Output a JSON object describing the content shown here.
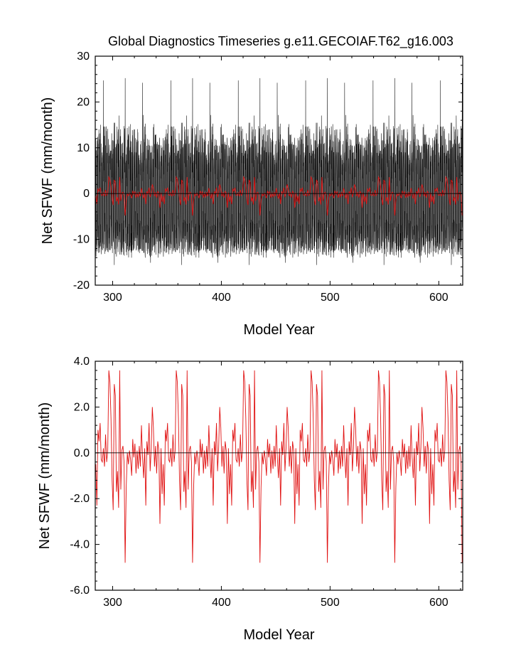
{
  "figure": {
    "title": "Global Diagnostics Timeseries g.e11.GECOIAF.T62_g16.003"
  },
  "chart_data": [
    {
      "type": "line",
      "xlabel": "Model Year",
      "ylabel": "Net SFWF (mm/month)",
      "xlim": [
        284,
        622
      ],
      "ylim": [
        -20,
        30
      ],
      "xticks": [
        300,
        400,
        500,
        600
      ],
      "xtick_labels": [
        "300",
        "400",
        "500",
        "600"
      ],
      "yticks": [
        -20,
        -10,
        0,
        10,
        20,
        30
      ],
      "ytick_labels": [
        "-20",
        "-10",
        "0",
        "10",
        "20",
        "30"
      ],
      "reference_line": 0,
      "series": [
        {
          "color": "#000000",
          "generation": {
            "kind": "monthly",
            "cycle_years": 62,
            "start": 284,
            "end": 622,
            "max": 25.2,
            "min": -15.6,
            "typical_high": 18,
            "typical_low": -9
          }
        },
        {
          "color": "#e01010",
          "generation": {
            "kind": "annual",
            "cycle_years": 62,
            "start": 284,
            "end": 622
          }
        }
      ],
      "grid": false
    },
    {
      "type": "line",
      "xlabel": "Model Year",
      "ylabel": "Net SFWF (mm/month)",
      "xlim": [
        284,
        622
      ],
      "ylim": [
        -6.0,
        4.0
      ],
      "xticks": [
        300,
        400,
        500,
        600
      ],
      "xtick_labels": [
        "300",
        "400",
        "500",
        "600"
      ],
      "yticks": [
        -6.0,
        -4.0,
        -2.0,
        0.0,
        2.0,
        4.0
      ],
      "ytick_labels": [
        "-6.0",
        "-4.0",
        "-2.0",
        "0.0",
        "2.0",
        "4.0"
      ],
      "reference_line": 0.0,
      "series": [
        {
          "color": "#e01010",
          "cycle_years": 62,
          "cycle_start": 284,
          "cycle_values": [
            -0.5,
            -2.3,
            1.0,
            0.5,
            1.3,
            -0.3,
            -0.4,
            0.2,
            -0.6,
            0.8,
            -0.4,
            0.1,
            -3.3,
            3.0,
            1.5,
            -1.2,
            -2.5,
            0.0,
            2.5,
            -1.7,
            -0.8,
            -2.4,
            3.6,
            -1.6,
            0.1,
            0.3,
            -0.4,
            0.2,
            -1.5,
            0.0,
            -0.5,
            0.1,
            -0.3,
            -1.0,
            0.6,
            -0.2,
            0.4,
            -0.9,
            0.1,
            -0.7,
            0.3,
            -0.6,
            1.2,
            -0.2,
            -1.1,
            0.2,
            -2.3,
            0.5,
            -0.1,
            1.3,
            -0.8,
            0.2,
            -0.4,
            1.1,
            -0.6,
            0.3,
            -0.9,
            0.5,
            0.1,
            -0.6,
            0.2,
            -1.8
          ],
          "events": [
            {
              "year": 311,
              "value": -4.8
            },
            {
              "year": 373,
              "value": -4.8
            },
            {
              "year": 435,
              "value": -4.8
            },
            {
              "year": 497,
              "value": -4.8
            },
            {
              "year": 559,
              "value": -4.8
            },
            {
              "year": 343,
              "value": -3.1
            },
            {
              "year": 405,
              "value": -3.1
            },
            {
              "year": 467,
              "value": -3.1
            },
            {
              "year": 529,
              "value": -3.1
            },
            {
              "year": 591,
              "value": -3.1
            }
          ]
        }
      ],
      "grid": false
    }
  ]
}
